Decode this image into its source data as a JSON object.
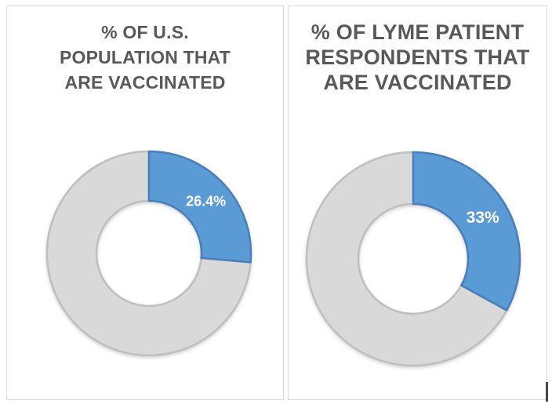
{
  "style": {
    "background": "#FFFFFF",
    "panel_border": "#D9D9D9",
    "title_color": "#595959",
    "accent_blue": "#5B9BD5",
    "accent_blue_border": "#4A7EBB",
    "remainder_gray": "#D9D9D9",
    "remainder_gray_border": "#BFBFBF",
    "label_color": "#FFFFFF"
  },
  "panels": [
    {
      "title": "% OF U.S. POPULATION THAT ARE VACCINATED",
      "title_lines": [
        "% OF U.S.",
        "POPULATION THAT",
        "ARE VACCINATED"
      ],
      "value_label": "26.4%"
    },
    {
      "title": "% OF LYME PATIENT RESPONDENTS THAT ARE VACCINATED",
      "title_lines": [
        "% OF LYME PATIENT",
        "RESPONDENTS THAT",
        "ARE VACCINATED"
      ],
      "value_label": "33%"
    }
  ],
  "chart_data": [
    {
      "type": "pie",
      "subtype": "doughnut",
      "title": "% OF U.S. POPULATION THAT ARE VACCINATED",
      "categories": [
        "Vaccinated",
        "Not vaccinated"
      ],
      "values": [
        26.4,
        73.6
      ],
      "data_labels": [
        "26.4%",
        ""
      ],
      "start_angle_deg": 0,
      "direction": "clockwise",
      "hole_ratio": 0.52,
      "legend": "none",
      "slice_colors": [
        "#5B9BD5",
        "#D9D9D9"
      ],
      "slice_border_colors": [
        "#4A7EBB",
        "#BFBFBF"
      ]
    },
    {
      "type": "pie",
      "subtype": "doughnut",
      "title": "% OF LYME PATIENT RESPONDENTS THAT ARE VACCINATED",
      "categories": [
        "Vaccinated",
        "Not vaccinated"
      ],
      "values": [
        33,
        67
      ],
      "data_labels": [
        "33%",
        ""
      ],
      "start_angle_deg": 0,
      "direction": "clockwise",
      "hole_ratio": 0.52,
      "legend": "none",
      "slice_colors": [
        "#5B9BD5",
        "#D9D9D9"
      ],
      "slice_border_colors": [
        "#4A7EBB",
        "#BFBFBF"
      ]
    }
  ]
}
